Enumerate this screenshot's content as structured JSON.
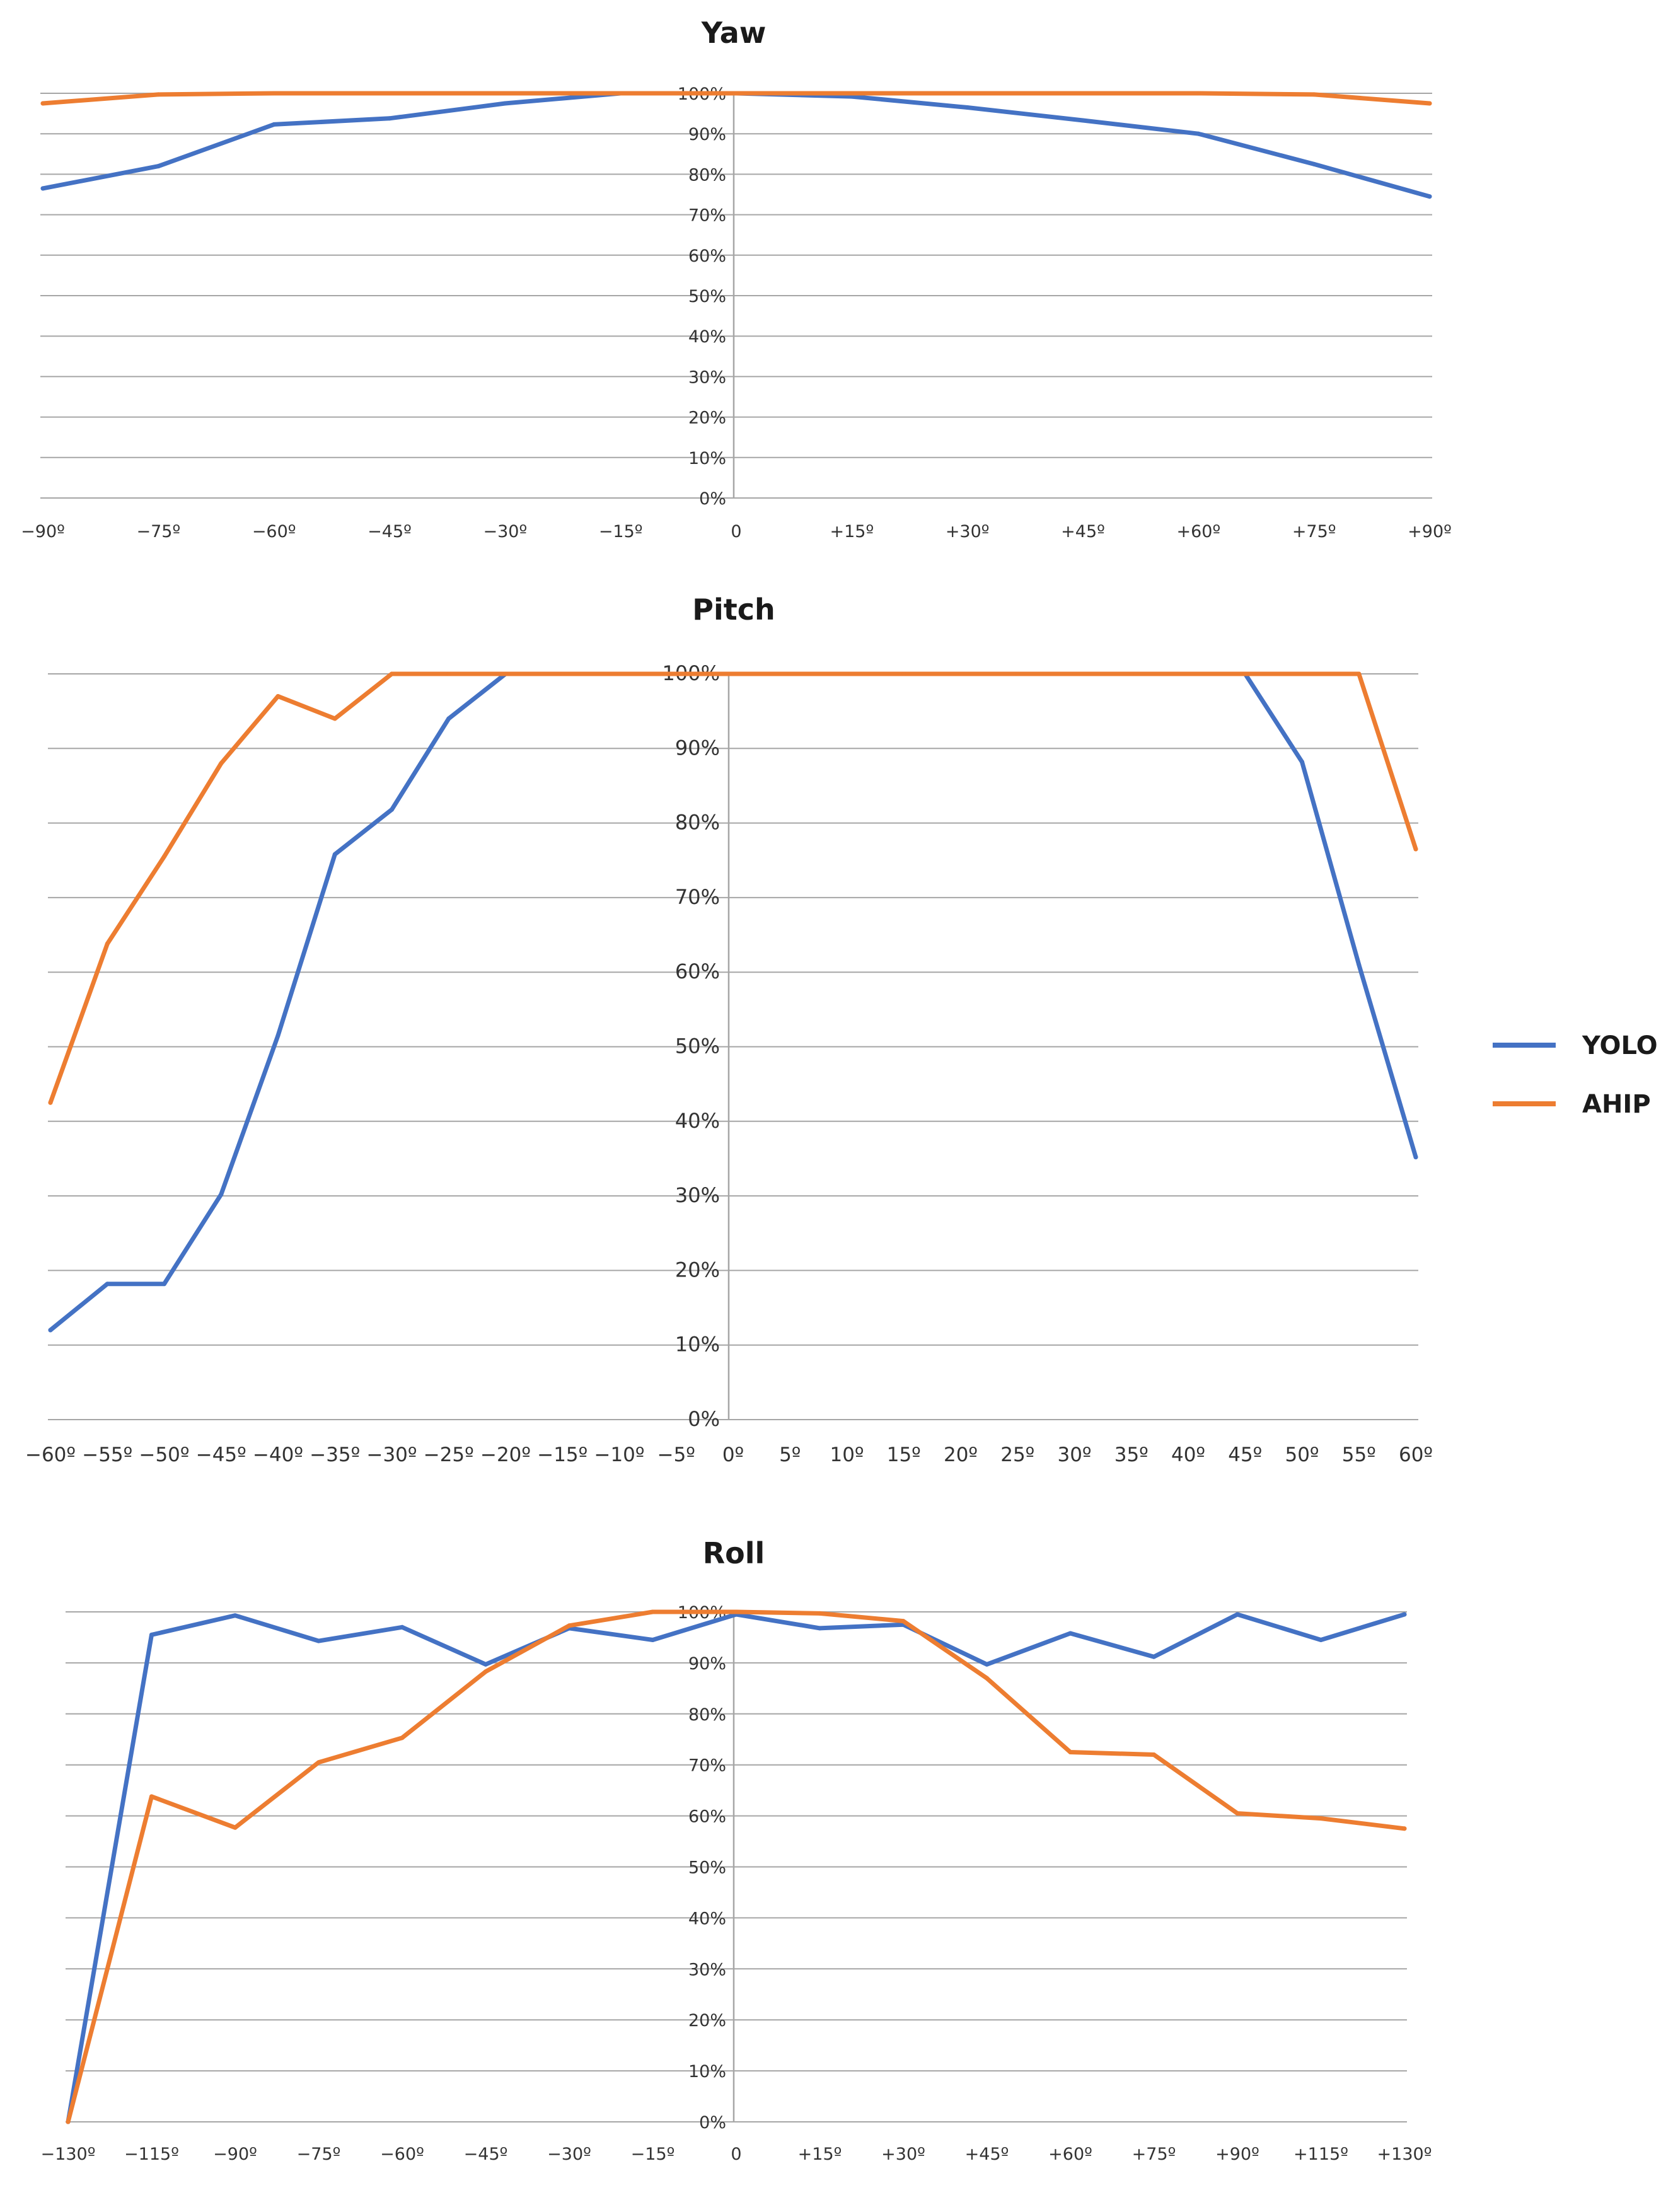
{
  "colors": {
    "yolo": "#4472C4",
    "ahip": "#ED7D31",
    "grid": "#a6a6a6"
  },
  "legend": {
    "placement": "right",
    "items": [
      {
        "name": "YOLO",
        "color": "#4472C4"
      },
      {
        "name": "AHIP",
        "color": "#ED7D31"
      }
    ]
  },
  "chart_data": [
    {
      "type": "line",
      "title": "Yaw",
      "xlabel": "",
      "ylabel": "",
      "ylim": [
        0,
        100
      ],
      "yticks": [
        "0%",
        "10%",
        "20%",
        "30%",
        "40%",
        "50%",
        "60%",
        "70%",
        "80%",
        "90%",
        "100%"
      ],
      "categories": [
        "−90º",
        "−75º",
        "−60º",
        "−45º",
        "−30º",
        "−15º",
        "0",
        "+15º",
        "+30º",
        "+45º",
        "+60º",
        "+75º",
        "+90º"
      ],
      "series": [
        {
          "name": "YOLO",
          "values": [
            76.5,
            82,
            92.3,
            93.8,
            97.5,
            100,
            100,
            99.2,
            96.5,
            93.3,
            90,
            82.5,
            74.5
          ]
        },
        {
          "name": "AHIP",
          "values": [
            97.5,
            99.7,
            100,
            100,
            100,
            100,
            100,
            100,
            100,
            100,
            100,
            99.7,
            97.5
          ]
        }
      ],
      "grid": true
    },
    {
      "type": "line",
      "title": "Pitch",
      "xlabel": "",
      "ylabel": "",
      "ylim": [
        0,
        100
      ],
      "yticks": [
        "0%",
        "10%",
        "20%",
        "30%",
        "40%",
        "50%",
        "60%",
        "70%",
        "80%",
        "90%",
        "100%"
      ],
      "categories": [
        "−60º",
        "−55º",
        "−50º",
        "−45º",
        "−40º",
        "−35º",
        "−30º",
        "−25º",
        "−20º",
        "−15º",
        "−10º",
        "−5º",
        "0º",
        "5º",
        "10º",
        "15º",
        "20º",
        "25º",
        "30º",
        "35º",
        "40º",
        "45º",
        "50º",
        "55º",
        "60º"
      ],
      "series": [
        {
          "name": "YOLO",
          "values": [
            12,
            18.2,
            18.2,
            30.2,
            51.5,
            75.8,
            81.8,
            94,
            100,
            100,
            100,
            100,
            100,
            100,
            100,
            100,
            100,
            100,
            100,
            100,
            100,
            100,
            88.2,
            61,
            35.2
          ]
        },
        {
          "name": "AHIP",
          "values": [
            42.5,
            63.8,
            75.5,
            88,
            97,
            94,
            100,
            100,
            100,
            100,
            100,
            100,
            100,
            100,
            100,
            100,
            100,
            100,
            100,
            100,
            100,
            100,
            100,
            100,
            76.5
          ]
        }
      ],
      "grid": true
    },
    {
      "type": "line",
      "title": "Roll",
      "xlabel": "",
      "ylabel": "",
      "ylim": [
        0,
        100
      ],
      "yticks": [
        "0%",
        "10%",
        "20%",
        "30%",
        "40%",
        "50%",
        "60%",
        "70%",
        "80%",
        "90%",
        "100%"
      ],
      "categories": [
        "−130º",
        "−115º",
        "−90º",
        "−75º",
        "−60º",
        "−45º",
        "−30º",
        "−15º",
        "0",
        "+15º",
        "+30º",
        "+45º",
        "+60º",
        "+75º",
        "+90º",
        "+115º",
        "+130º"
      ],
      "series": [
        {
          "name": "YOLO",
          "values": [
            0,
            95.5,
            99.3,
            94.3,
            97,
            89.7,
            96.8,
            94.5,
            99.5,
            96.8,
            97.5,
            89.7,
            95.8,
            91.2,
            99.5,
            94.5,
            99.5
          ]
        },
        {
          "name": "AHIP",
          "values": [
            0,
            63.8,
            57.7,
            70.5,
            75.3,
            88.3,
            97.3,
            100,
            100,
            99.7,
            98.2,
            87,
            72.5,
            72,
            60.5,
            59.5,
            57.5
          ]
        }
      ],
      "grid": true
    }
  ]
}
